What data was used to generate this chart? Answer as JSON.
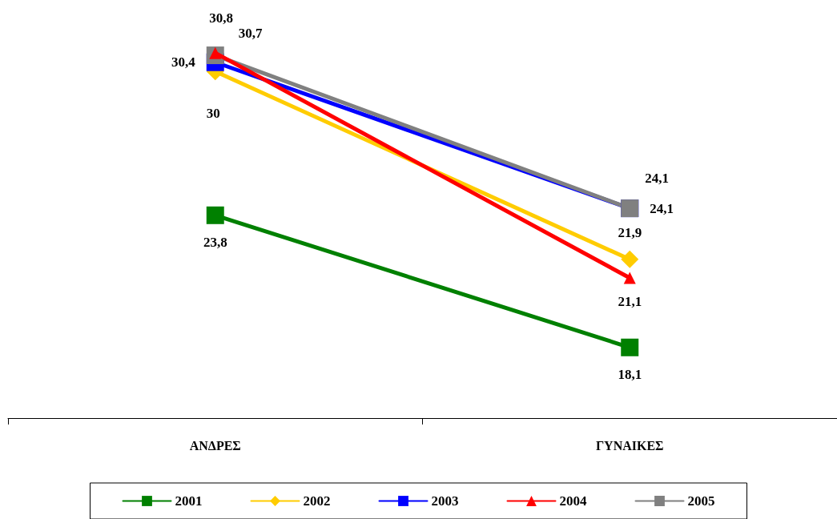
{
  "chart_data": {
    "type": "line",
    "categories": [
      "ΑΝΔΡΕΣ",
      "ΓΥΝΑΙΚΕΣ"
    ],
    "series": [
      {
        "name": "2001",
        "color": "#008000",
        "values": [
          23.8,
          18.1
        ],
        "value_labels": [
          "23,8",
          "18,1"
        ],
        "marker": "square"
      },
      {
        "name": "2002",
        "color": "#ffcc00",
        "values": [
          30,
          21.9
        ],
        "value_labels": [
          "30",
          "21,9"
        ],
        "marker": "diamond"
      },
      {
        "name": "2003",
        "color": "#0000ff",
        "values": [
          30.4,
          24.1
        ],
        "value_labels": [
          "30,4",
          "24,1"
        ],
        "marker": "square"
      },
      {
        "name": "2004",
        "color": "#ff0000",
        "values": [
          30.8,
          21.1
        ],
        "value_labels": [
          "30,8",
          "21,1"
        ],
        "marker": "triangle"
      },
      {
        "name": "2005",
        "color": "#808080",
        "values": [
          30.7,
          24.1
        ],
        "value_labels": [
          "30,7",
          "24,1"
        ],
        "marker": "square"
      }
    ],
    "legend": "bottom",
    "line_style": "solid"
  }
}
